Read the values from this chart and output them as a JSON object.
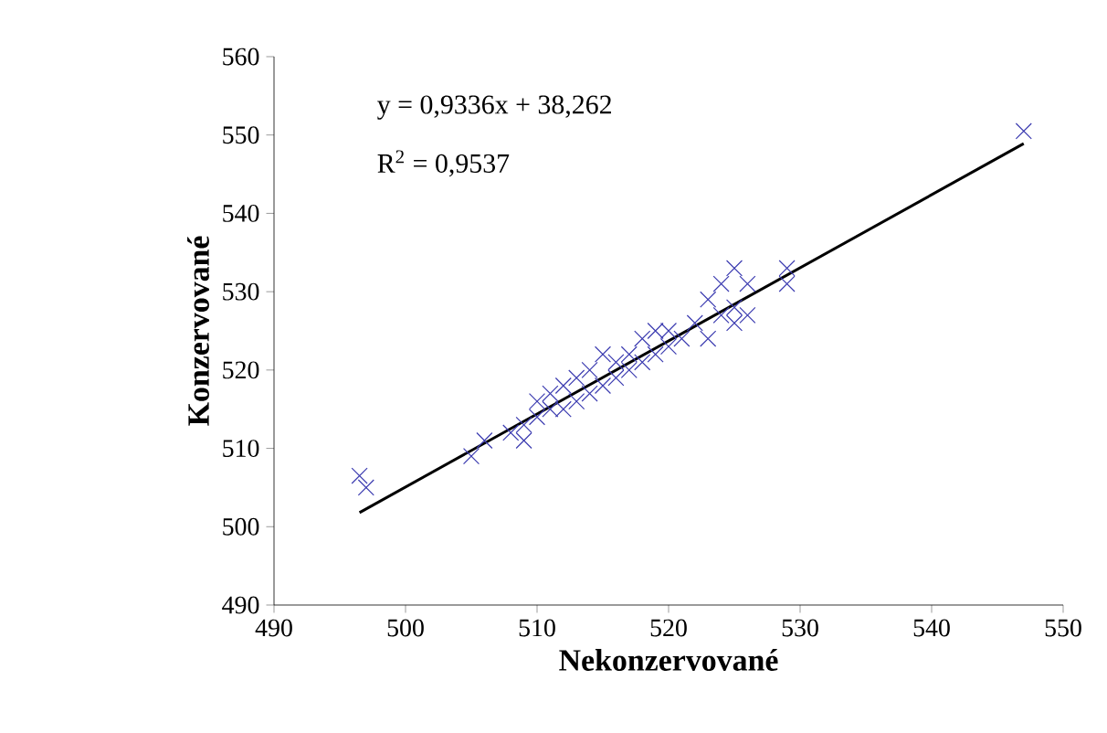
{
  "chart_data": {
    "type": "scatter",
    "xlabel": "Nekonzervované",
    "ylabel": "Konzervované",
    "annotations": [
      "y = 0,9336x + 38,262",
      "R$^{2}$ = 0,9537"
    ],
    "xlim": [
      490,
      550
    ],
    "xticks": [
      490,
      500,
      510,
      520,
      530,
      540,
      550
    ],
    "ylim": [
      490,
      560
    ],
    "yticks": [
      490,
      500,
      510,
      520,
      530,
      540,
      550,
      560
    ],
    "grid": false,
    "marker": "cross",
    "series": [
      {
        "color": "#3b3bb0",
        "x": [
          496.5,
          497,
          505,
          506,
          508,
          509,
          509,
          510,
          510,
          511,
          511,
          512,
          512,
          513,
          513,
          514,
          514,
          515,
          515,
          516,
          516,
          517,
          517,
          518,
          518,
          519,
          519,
          520,
          520,
          521,
          522,
          523,
          523,
          524,
          524,
          525,
          525,
          525,
          526,
          526,
          529,
          529,
          547
        ],
        "values": [
          506.5,
          505,
          509,
          511,
          512,
          511,
          513,
          514,
          516,
          515,
          517,
          515,
          518,
          516,
          519,
          517,
          520,
          518,
          522,
          519,
          521,
          520,
          522,
          521,
          524,
          522,
          525,
          523,
          525,
          524,
          526,
          524,
          529,
          527,
          531,
          528,
          533,
          526,
          527,
          531,
          533,
          531,
          550.5
        ]
      },
      {
        "type": "line",
        "color": "#000000",
        "marker": "none",
        "x": [
          496.5,
          547
        ],
        "values": [
          501.8,
          548.9
        ]
      }
    ]
  }
}
